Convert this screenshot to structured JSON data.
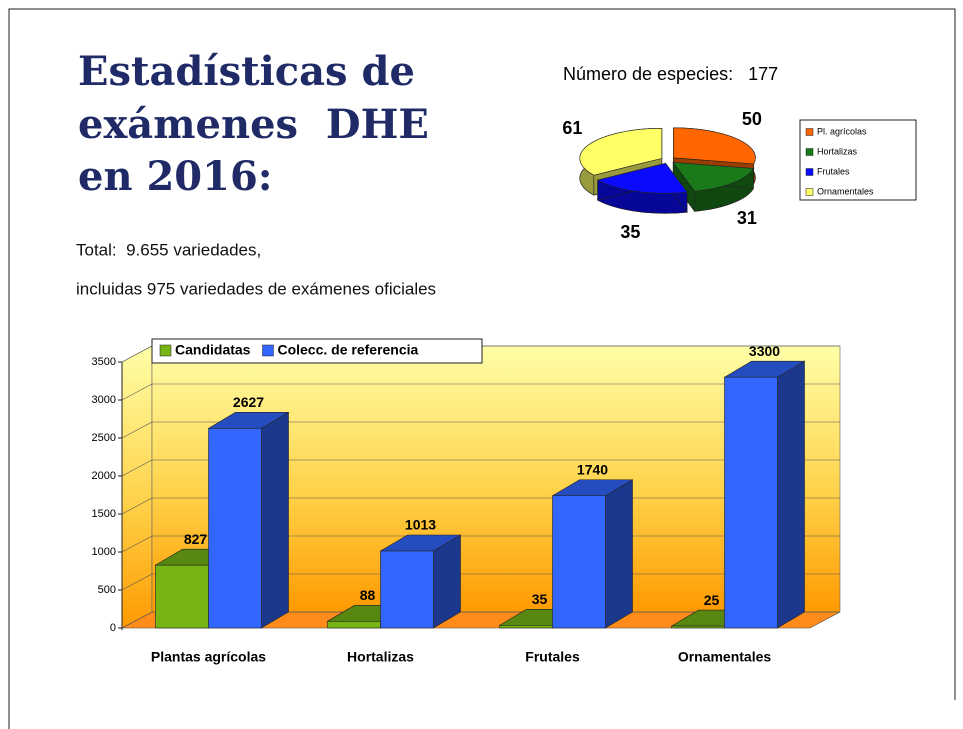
{
  "title_lines": [
    "Estadísticas de",
    "exámenes  DHE",
    "en 2016:"
  ],
  "text": [
    "Total:  9.655 variedades,",
    "incluidas 975 variedades de exámenes oficiales"
  ],
  "chart_data": [
    {
      "type": "pie",
      "title": "Número de especies:   177",
      "categories": [
        "Pl. agrícolas",
        "Hortalizas",
        "Frutales",
        "Ornamentales"
      ],
      "values": [
        50,
        31,
        35,
        61
      ],
      "colors": [
        "#ff6600",
        "#1a7a1a",
        "#0a0aff",
        "#ffff66"
      ],
      "legend": "right"
    },
    {
      "type": "bar",
      "categories": [
        "Plantas agrícolas",
        "Hortalizas",
        "Frutales",
        "Ornamentales"
      ],
      "series": [
        {
          "name": "Candidatas",
          "color": "#77b515",
          "values": [
            827,
            88,
            35,
            25
          ]
        },
        {
          "name": "Colecc. de referencia",
          "color": "#3366ff",
          "values": [
            2627,
            1013,
            1740,
            3300
          ]
        }
      ],
      "ylim": [
        0,
        3500
      ],
      "yticks": [
        0,
        500,
        1000,
        1500,
        2000,
        2500,
        3000,
        3500
      ],
      "grid": true,
      "legend": "top-left"
    }
  ]
}
